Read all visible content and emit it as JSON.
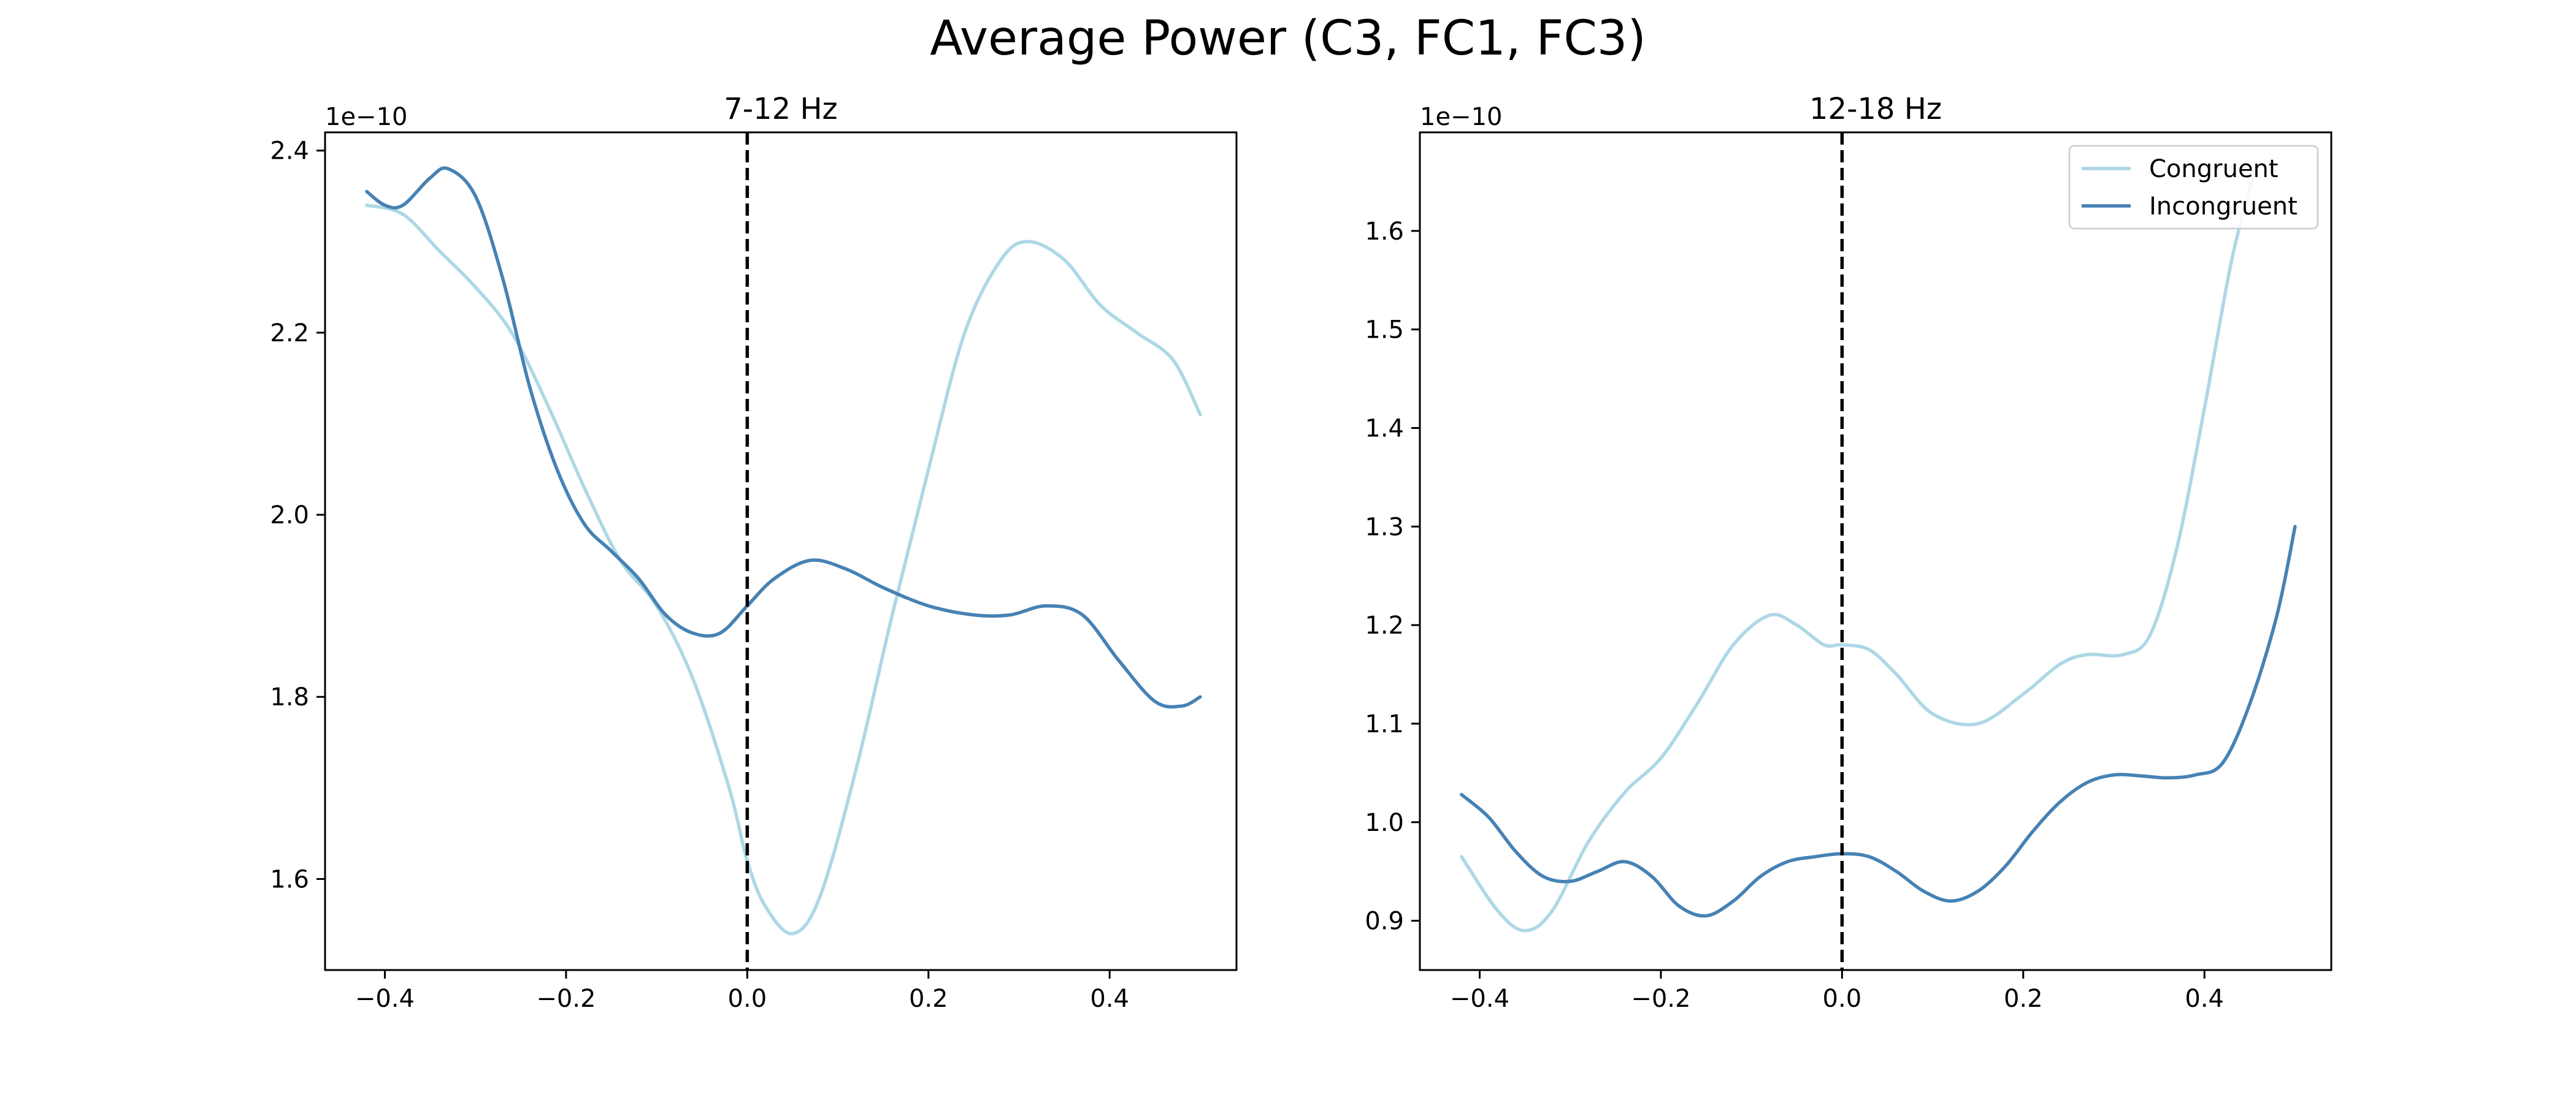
{
  "figure": {
    "title": "Average Power (C3, FC1, FC3)"
  },
  "colors": {
    "congruent": "#add8e6",
    "incongruent": "#4682b4",
    "vline": "#000000"
  },
  "chart_data": [
    {
      "type": "line",
      "title": "7-12 Hz",
      "xlabel": "",
      "ylabel": "",
      "offset_label": "1e−10",
      "xlim": [
        -0.466,
        0.54
      ],
      "ylim": [
        1.5,
        2.42
      ],
      "xticks": [
        -0.4,
        -0.2,
        0.0,
        0.2,
        0.4
      ],
      "xtick_labels": [
        "−0.4",
        "−0.2",
        "0.0",
        "0.2",
        "0.4"
      ],
      "yticks": [
        1.6,
        1.8,
        2.0,
        2.2,
        2.4
      ],
      "ytick_labels": [
        "1.6",
        "1.8",
        "2.0",
        "2.2",
        "2.4"
      ],
      "vline_x": 0.0,
      "grid": false,
      "series": [
        {
          "name": "Congruent",
          "x": [
            -0.42,
            -0.38,
            -0.34,
            -0.3,
            -0.26,
            -0.22,
            -0.18,
            -0.14,
            -0.1,
            -0.06,
            -0.02,
            0.0,
            0.02,
            0.05,
            0.08,
            0.12,
            0.16,
            0.2,
            0.24,
            0.28,
            0.31,
            0.35,
            0.39,
            0.43,
            0.47,
            0.5
          ],
          "y": [
            2.34,
            2.33,
            2.29,
            2.25,
            2.2,
            2.12,
            2.03,
            1.95,
            1.9,
            1.82,
            1.7,
            1.62,
            1.57,
            1.54,
            1.58,
            1.72,
            1.89,
            2.05,
            2.2,
            2.28,
            2.3,
            2.28,
            2.23,
            2.2,
            2.17,
            2.11
          ]
        },
        {
          "name": "Incongruent",
          "x": [
            -0.42,
            -0.4,
            -0.38,
            -0.35,
            -0.33,
            -0.3,
            -0.27,
            -0.24,
            -0.21,
            -0.18,
            -0.15,
            -0.12,
            -0.09,
            -0.06,
            -0.03,
            0.0,
            0.03,
            0.07,
            0.11,
            0.15,
            0.2,
            0.25,
            0.29,
            0.33,
            0.37,
            0.41,
            0.45,
            0.48,
            0.5
          ],
          "y": [
            2.355,
            2.34,
            2.34,
            2.37,
            2.38,
            2.35,
            2.26,
            2.14,
            2.05,
            1.99,
            1.96,
            1.93,
            1.89,
            1.87,
            1.87,
            1.9,
            1.93,
            1.95,
            1.94,
            1.92,
            1.9,
            1.89,
            1.89,
            1.9,
            1.89,
            1.84,
            1.795,
            1.79,
            1.8
          ]
        }
      ]
    },
    {
      "type": "line",
      "title": "12-18 Hz",
      "xlabel": "",
      "ylabel": "",
      "offset_label": "1e−10",
      "xlim": [
        -0.466,
        0.54
      ],
      "ylim": [
        0.85,
        1.7
      ],
      "xticks": [
        -0.4,
        -0.2,
        0.0,
        0.2,
        0.4
      ],
      "xtick_labels": [
        "−0.4",
        "−0.2",
        "0.0",
        "0.2",
        "0.4"
      ],
      "yticks": [
        0.9,
        1.0,
        1.1,
        1.2,
        1.3,
        1.4,
        1.5,
        1.6
      ],
      "ytick_labels": [
        "0.9",
        "1.0",
        "1.1",
        "1.2",
        "1.3",
        "1.4",
        "1.5",
        "1.6"
      ],
      "vline_x": 0.0,
      "grid": false,
      "legend": {
        "placement": "top-right",
        "entries": [
          "Congruent",
          "Incongruent"
        ]
      },
      "series": [
        {
          "name": "Congruent",
          "x": [
            -0.42,
            -0.38,
            -0.35,
            -0.32,
            -0.28,
            -0.24,
            -0.2,
            -0.16,
            -0.12,
            -0.08,
            -0.05,
            -0.02,
            0.0,
            0.03,
            0.06,
            0.1,
            0.15,
            0.2,
            0.24,
            0.27,
            0.31,
            0.34,
            0.37,
            0.4,
            0.43,
            0.455
          ],
          "y": [
            0.965,
            0.91,
            0.89,
            0.91,
            0.98,
            1.03,
            1.065,
            1.12,
            1.18,
            1.21,
            1.2,
            1.18,
            1.18,
            1.175,
            1.15,
            1.11,
            1.1,
            1.13,
            1.16,
            1.17,
            1.17,
            1.19,
            1.28,
            1.42,
            1.57,
            1.66
          ]
        },
        {
          "name": "Incongruent",
          "x": [
            -0.42,
            -0.39,
            -0.36,
            -0.33,
            -0.3,
            -0.27,
            -0.24,
            -0.21,
            -0.18,
            -0.15,
            -0.12,
            -0.09,
            -0.06,
            -0.03,
            0.0,
            0.03,
            0.06,
            0.09,
            0.12,
            0.15,
            0.18,
            0.21,
            0.24,
            0.27,
            0.3,
            0.33,
            0.36,
            0.39,
            0.42,
            0.45,
            0.48,
            0.5
          ],
          "y": [
            1.028,
            1.005,
            0.97,
            0.945,
            0.94,
            0.95,
            0.96,
            0.945,
            0.915,
            0.905,
            0.92,
            0.945,
            0.96,
            0.965,
            0.968,
            0.965,
            0.95,
            0.93,
            0.92,
            0.93,
            0.955,
            0.99,
            1.02,
            1.04,
            1.048,
            1.047,
            1.045,
            1.048,
            1.06,
            1.12,
            1.21,
            1.3
          ]
        }
      ]
    }
  ]
}
